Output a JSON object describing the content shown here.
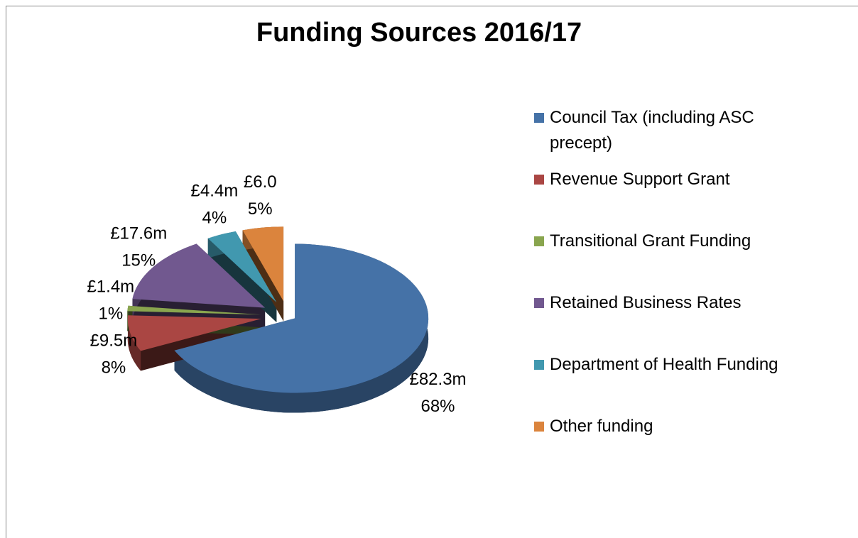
{
  "chart_data": {
    "type": "pie",
    "title": "Funding Sources 2016/17",
    "categories": [
      "Council Tax (including ASC precept)",
      "Revenue Support Grant",
      "Transitional Grant Funding",
      "Retained Business Rates",
      "Department of Health Funding",
      "Other funding"
    ],
    "values": [
      82.3,
      9.5,
      1.4,
      17.6,
      4.4,
      6.0
    ],
    "value_labels": [
      "£82.3m",
      "£9.5m",
      "£1.4m",
      "£17.6m",
      "£4.4m",
      "£6.0"
    ],
    "percents": [
      68,
      8,
      1,
      15,
      4,
      5
    ],
    "percent_labels": [
      "68%",
      "8%",
      "1%",
      "15%",
      "4%",
      "5%"
    ],
    "colors": [
      "#4572a7",
      "#aa4643",
      "#89a54e",
      "#71588f",
      "#4198af",
      "#db843d"
    ],
    "legend": "right"
  }
}
